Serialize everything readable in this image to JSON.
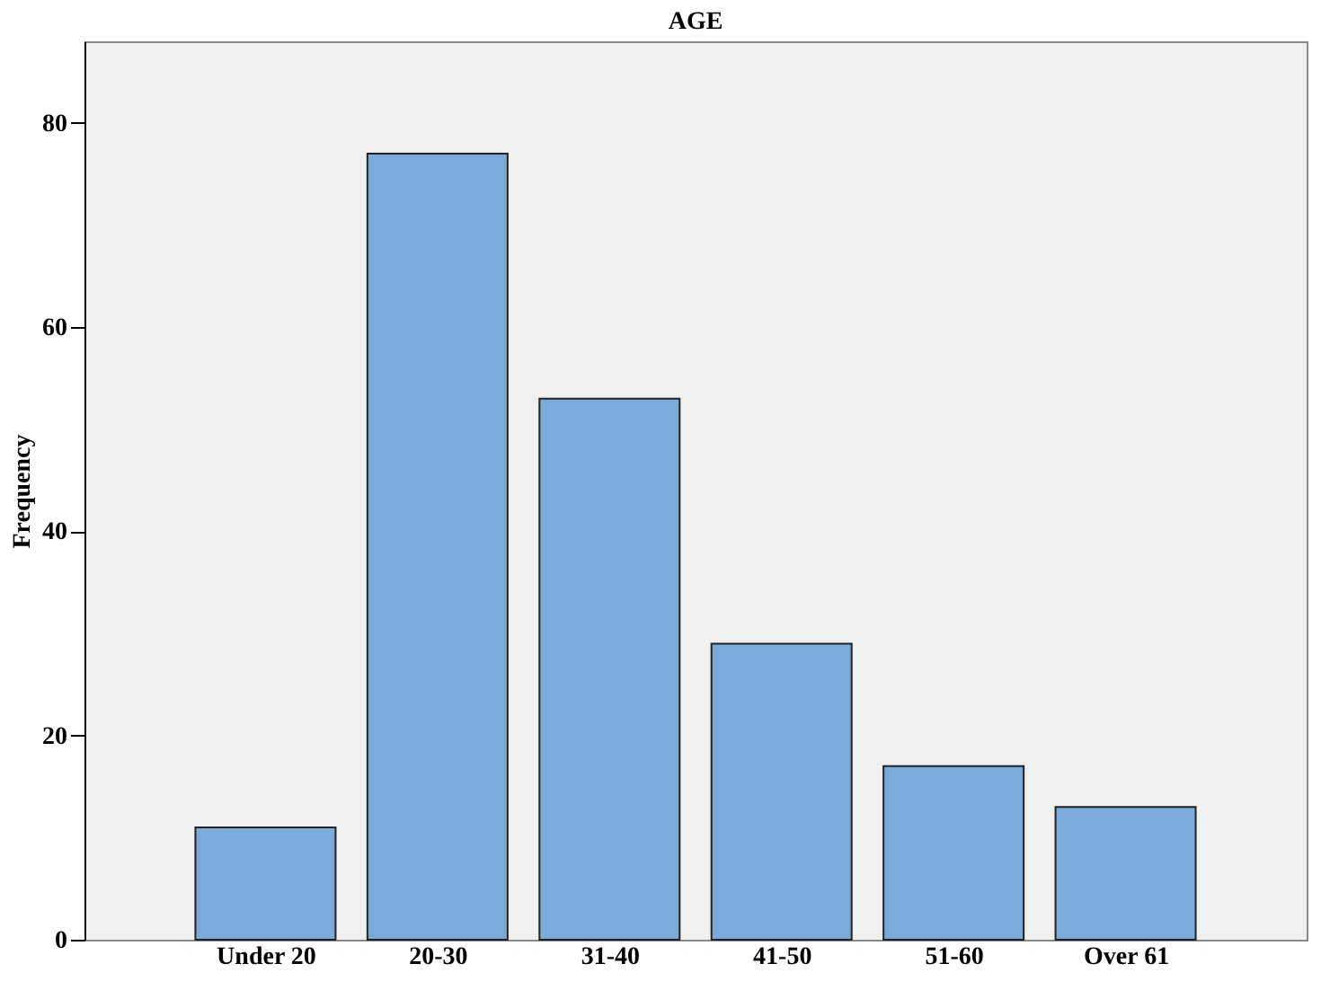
{
  "chart_data": {
    "type": "bar",
    "title": "AGE",
    "ylabel": "Frequency",
    "categories": [
      "Under 20",
      "20-30",
      "31-40",
      "41-50",
      "51-60",
      "Over 61"
    ],
    "values": [
      11,
      77,
      53,
      29,
      17,
      13
    ],
    "color": "#7aaad8",
    "ylim": [
      0,
      88
    ],
    "yticks": [
      0,
      20,
      40,
      60,
      80
    ],
    "grid": false
  }
}
